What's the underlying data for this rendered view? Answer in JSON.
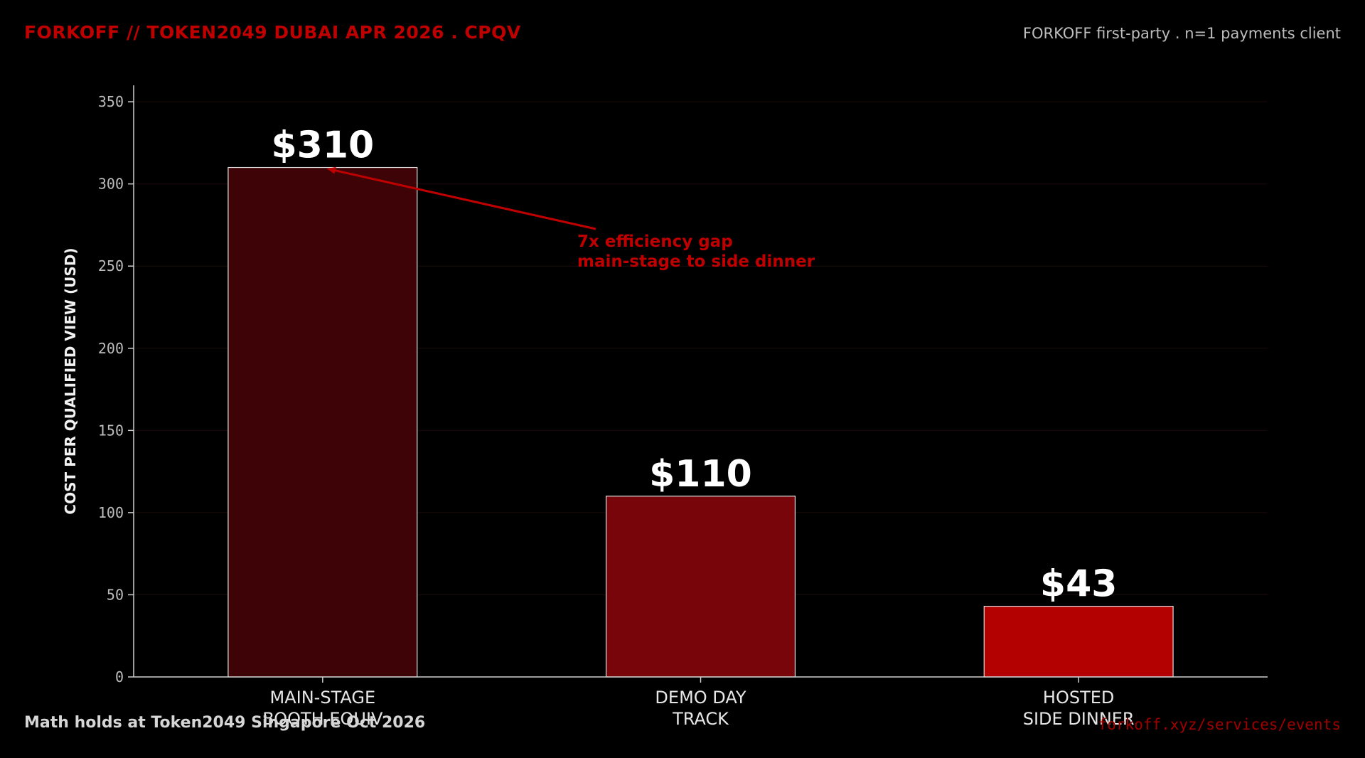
{
  "header": {
    "title": "FORKOFF // TOKEN2049 DUBAI APR 2026 . CPQV",
    "source": "FORKOFF first-party . n=1 payments client"
  },
  "footer": {
    "note": "Math holds at Token2049 Singapore Oct 2026",
    "link": "forkoff.xyz/services/events"
  },
  "chart_data": {
    "type": "bar",
    "categories": [
      [
        "MAIN-STAGE",
        "BOOTH EQUIV"
      ],
      [
        "DEMO DAY",
        "TRACK"
      ],
      [
        "HOSTED",
        "SIDE DINNER"
      ]
    ],
    "values": [
      310,
      110,
      43
    ],
    "data_labels": [
      "$310",
      "$110",
      "$43"
    ],
    "bar_colors": [
      "#3d0306",
      "#780509",
      "#b30000"
    ],
    "bar_edge_color": "#e0e0e0",
    "ylabel": "COST PER QUALIFIED VIEW (USD)",
    "ylim": [
      0,
      360
    ],
    "yticks": [
      0,
      50,
      100,
      150,
      200,
      250,
      300,
      350
    ],
    "grid": true,
    "annotation": {
      "lines": [
        "7x efficiency gap",
        "main-stage to side dinner"
      ],
      "target_category_index": 0,
      "target_value": 310,
      "color": "#c00000"
    }
  }
}
